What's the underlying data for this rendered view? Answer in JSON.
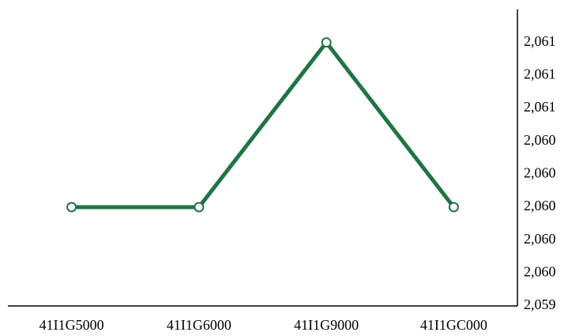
{
  "chart_data": {
    "type": "line",
    "categories": [
      "41I1G5000",
      "41I1G6000",
      "41I1G9000",
      "41I1GC000"
    ],
    "series": [
      {
        "color": "#217346",
        "values": [
          2060,
          2060,
          2061,
          2060
        ]
      }
    ],
    "ylim": [
      2059.4,
      2061.2
    ],
    "yticks": [
      {
        "value": 2059.4,
        "label": "2,059"
      },
      {
        "value": 2059.6,
        "label": "2,060"
      },
      {
        "value": 2059.8,
        "label": "2,060"
      },
      {
        "value": 2060.0,
        "label": "2,060"
      },
      {
        "value": 2060.2,
        "label": "2,060"
      },
      {
        "value": 2060.4,
        "label": "2,060"
      },
      {
        "value": 2060.6,
        "label": "2,061"
      },
      {
        "value": 2060.8,
        "label": "2,061"
      },
      {
        "value": 2061.0,
        "label": "2,061"
      }
    ],
    "y_axis_side": "right",
    "grid": false
  }
}
